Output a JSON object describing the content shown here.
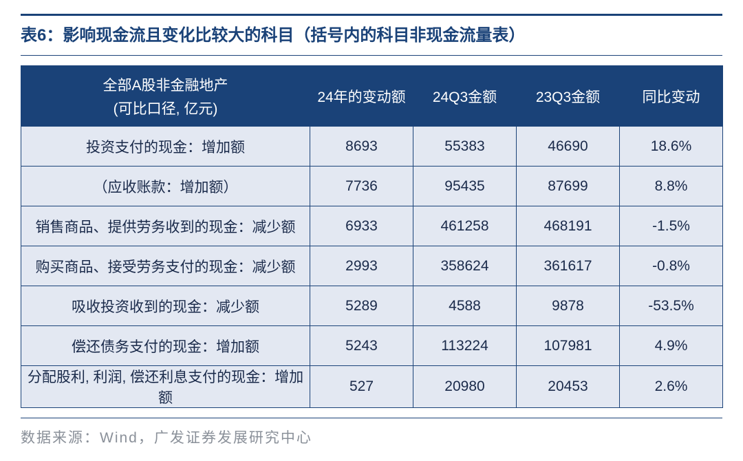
{
  "title": "表6：影响现金流且变化比较大的科目（括号内的科目非现金流量表）",
  "header": {
    "col0_line1": "全部A股非金融地产",
    "col0_line2": "(可比口径, 亿元)",
    "col1": "24年的变动额",
    "col2": "24Q3金额",
    "col3": "23Q3金额",
    "col4": "同比变动"
  },
  "rows": [
    {
      "label": "投资支付的现金：增加额",
      "change": "8693",
      "q24": "55383",
      "q23": "46690",
      "yoy": "18.6%",
      "yoy_red": true
    },
    {
      "label": "（应收账款：增加额）",
      "change": "7736",
      "q24": "95435",
      "q23": "87699",
      "yoy": "8.8%",
      "yoy_red": true
    },
    {
      "label": "销售商品、提供劳务收到的现金：减少额",
      "change": "6933",
      "q24": "461258",
      "q23": "468191",
      "yoy": "-1.5%",
      "yoy_red": true
    },
    {
      "label": "购买商品、接受劳务支付的现金：减少额",
      "change": "2993",
      "q24": "358624",
      "q23": "361617",
      "yoy": "-0.8%",
      "yoy_red": true
    },
    {
      "label": "吸收投资收到的现金：减少额",
      "change": "5289",
      "q24": "4588",
      "q23": "9878",
      "yoy": "-53.5%",
      "yoy_red": true
    },
    {
      "label": "偿还债务支付的现金：增加额",
      "change": "5243",
      "q24": "113224",
      "q23": "107981",
      "yoy": "4.9%",
      "yoy_red": true
    },
    {
      "label": "分配股利, 利润, 偿还利息支付的现金：增加额",
      "change": "527",
      "q24": "20980",
      "q23": "20453",
      "yoy": "2.6%",
      "yoy_red": true
    }
  ],
  "source": "数据来源：Wind，广发证券发展研究中心",
  "colors": {
    "header_bg": "#1a4278",
    "header_text": "#ffffff",
    "cell_bg": "#e3e8f2",
    "cell_text": "#1a2a4a",
    "highlight": "#d4313b",
    "border": "#1a4278",
    "source_text": "#8a9099"
  }
}
